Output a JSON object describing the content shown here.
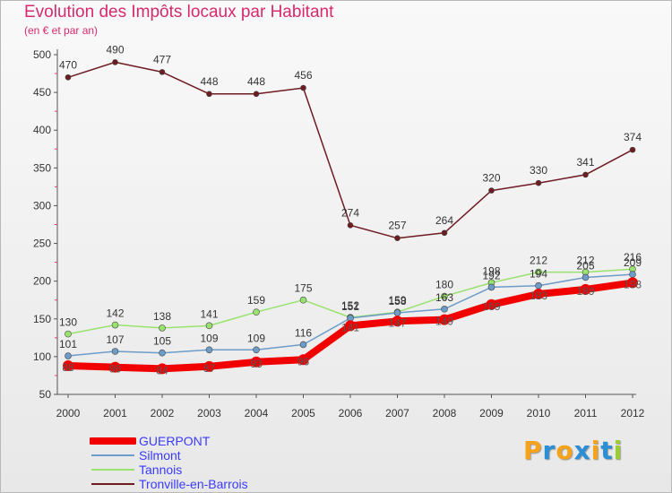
{
  "chart_data": {
    "type": "line",
    "title": "Evolution des Impôts locaux par Habitant",
    "subtitle": "(en € et par an)",
    "xlabel": "",
    "ylabel": "",
    "ylim": [
      50,
      500
    ],
    "y_ticks": [
      50,
      100,
      150,
      200,
      250,
      300,
      350,
      400,
      450,
      500
    ],
    "categories": [
      "2000",
      "2001",
      "2002",
      "2003",
      "2004",
      "2005",
      "2006",
      "2007",
      "2008",
      "2009",
      "2010",
      "2011",
      "2012"
    ],
    "grid": false,
    "legend_position": "bottom-left",
    "series": [
      {
        "name": "Tronville-en-Barrois",
        "color": "#6e1b22",
        "values": [
          470,
          490,
          477,
          448,
          448,
          456,
          274,
          257,
          264,
          320,
          330,
          341,
          374
        ]
      },
      {
        "name": "Tannois",
        "color": "#99e26f",
        "values": [
          130,
          142,
          138,
          141,
          159,
          175,
          152,
          159,
          180,
          198,
          212,
          212,
          216
        ]
      },
      {
        "name": "Silmont",
        "color": "#6d9cc9",
        "values": [
          101,
          107,
          105,
          109,
          109,
          116,
          151,
          158,
          163,
          192,
          194,
          205,
          209
        ]
      },
      {
        "name": "GUERPONT",
        "color": "#f20000",
        "values": [
          88,
          86,
          84,
          87,
          93,
          96,
          141,
          147,
          149,
          169,
          183,
          189,
          198
        ]
      }
    ]
  },
  "legend": {
    "items": [
      {
        "label": "GUERPONT",
        "color": "#f20000"
      },
      {
        "label": "Silmont",
        "color": "#6d9cc9"
      },
      {
        "label": "Tannois",
        "color": "#99e26f"
      },
      {
        "label": "Tronville-en-Barrois",
        "color": "#6e1b22"
      }
    ]
  },
  "brand": {
    "text": "Proxiti",
    "letters": [
      "P",
      "r",
      "o",
      "x",
      "i",
      "t",
      "i"
    ],
    "colors": [
      "#f7a21b",
      "#2b8fd6",
      "#f7a21b",
      "#2b8fd6",
      "#f7a21b",
      "#2b8fd6",
      "#9acd32"
    ]
  }
}
